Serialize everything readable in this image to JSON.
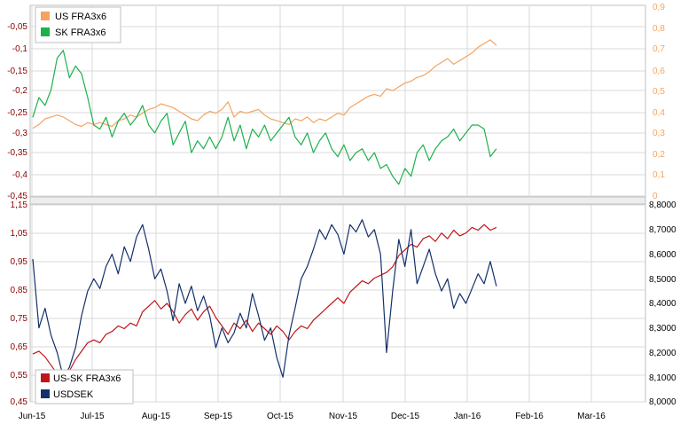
{
  "colors": {
    "us_fra": "#F4A460",
    "sk_fra": "#1DB14B",
    "spread": "#C0161B",
    "usdsek": "#13306A",
    "grid": "#D9D9D9",
    "left_axis_text": "#8B0000",
    "right_axis_text_top": "#F4A460",
    "right_axis_text_bottom": "#000000"
  },
  "chart_data": [
    {
      "type": "line",
      "panel": "top",
      "legend": {
        "placement": "top-left",
        "entries": [
          "US FRA3x6",
          "SK FRA3x6"
        ]
      },
      "x_ticks": [
        "Jun-15",
        "Jul-15",
        "Aug-15",
        "Sep-15",
        "Oct-15",
        "Nov-15",
        "Dec-15",
        "Jan-16",
        "Feb-16",
        "Mar-16"
      ],
      "y_left": {
        "ticks": [
          "-0,05",
          "-0,1",
          "-0,15",
          "-0,2",
          "-0,25",
          "-0,3",
          "-0,35",
          "-0,4",
          "-0,45"
        ],
        "range": [
          -0.45,
          -0.02
        ]
      },
      "y_right": {
        "ticks": [
          "0,9",
          "0,8",
          "0,7",
          "0,6",
          "0,5",
          "0,4",
          "0,3",
          "0,2",
          "0,1",
          "0"
        ],
        "range": [
          0,
          0.9
        ]
      },
      "grid": true,
      "series": [
        {
          "name": "US FRA3x6",
          "axis": "right",
          "x": [
            0,
            3,
            6,
            9,
            12,
            15,
            18,
            21,
            24,
            27,
            30,
            33,
            36,
            39,
            42,
            45,
            48,
            51,
            54,
            57,
            60,
            63,
            66,
            69,
            72,
            75,
            78,
            81,
            84,
            87,
            90,
            93,
            96,
            99,
            102,
            105,
            108,
            111,
            114,
            117,
            120,
            123,
            126,
            129,
            132,
            135,
            138,
            141,
            144,
            147,
            150,
            153,
            156,
            159,
            162,
            165,
            168,
            171,
            174,
            177,
            180,
            183,
            186,
            189,
            192,
            195,
            198,
            201,
            204,
            207,
            210,
            213,
            216,
            219,
            222,
            225,
            228
          ],
          "values": [
            0.36,
            0.38,
            0.41,
            0.42,
            0.43,
            0.42,
            0.4,
            0.38,
            0.37,
            0.39,
            0.38,
            0.39,
            0.38,
            0.37,
            0.4,
            0.41,
            0.43,
            0.42,
            0.44,
            0.46,
            0.47,
            0.49,
            0.48,
            0.47,
            0.45,
            0.43,
            0.41,
            0.4,
            0.43,
            0.45,
            0.44,
            0.46,
            0.5,
            0.42,
            0.45,
            0.44,
            0.45,
            0.46,
            0.43,
            0.41,
            0.4,
            0.39,
            0.38,
            0.41,
            0.4,
            0.42,
            0.39,
            0.41,
            0.4,
            0.42,
            0.44,
            0.43,
            0.47,
            0.49,
            0.51,
            0.53,
            0.54,
            0.53,
            0.57,
            0.56,
            0.58,
            0.6,
            0.61,
            0.63,
            0.64,
            0.66,
            0.69,
            0.71,
            0.73,
            0.7,
            0.72,
            0.74,
            0.76,
            0.79,
            0.81,
            0.83,
            0.8
          ]
        },
        {
          "name": "SK FRA3x6",
          "axis": "left",
          "x": [
            0,
            3,
            6,
            9,
            12,
            15,
            18,
            21,
            24,
            27,
            30,
            33,
            36,
            39,
            42,
            45,
            48,
            51,
            54,
            57,
            60,
            63,
            66,
            69,
            72,
            75,
            78,
            81,
            84,
            87,
            90,
            93,
            96,
            99,
            102,
            105,
            108,
            111,
            114,
            117,
            120,
            123,
            126,
            129,
            132,
            135,
            138,
            141,
            144,
            147,
            150,
            153,
            156,
            159,
            162,
            165,
            168,
            171,
            174,
            177,
            180,
            183,
            186,
            189,
            192,
            195,
            198,
            201,
            204,
            207,
            210,
            213,
            216,
            219,
            222,
            225,
            228
          ],
          "values": [
            -0.25,
            -0.2,
            -0.22,
            -0.18,
            -0.1,
            -0.08,
            -0.15,
            -0.12,
            -0.14,
            -0.2,
            -0.27,
            -0.28,
            -0.25,
            -0.3,
            -0.26,
            -0.24,
            -0.27,
            -0.25,
            -0.22,
            -0.27,
            -0.29,
            -0.26,
            -0.24,
            -0.32,
            -0.29,
            -0.26,
            -0.34,
            -0.31,
            -0.33,
            -0.3,
            -0.33,
            -0.3,
            -0.25,
            -0.31,
            -0.27,
            -0.33,
            -0.28,
            -0.3,
            -0.27,
            -0.31,
            -0.29,
            -0.27,
            -0.25,
            -0.3,
            -0.32,
            -0.29,
            -0.34,
            -0.31,
            -0.29,
            -0.33,
            -0.35,
            -0.32,
            -0.36,
            -0.34,
            -0.33,
            -0.36,
            -0.34,
            -0.38,
            -0.37,
            -0.4,
            -0.42,
            -0.38,
            -0.4,
            -0.34,
            -0.32,
            -0.36,
            -0.33,
            -0.31,
            -0.3,
            -0.28,
            -0.31,
            -0.29,
            -0.27,
            -0.27,
            -0.28,
            -0.35,
            -0.33
          ]
        }
      ]
    },
    {
      "type": "line",
      "panel": "bottom",
      "legend": {
        "placement": "bottom-left",
        "entries": [
          "US-SK FRA3x6",
          "USDSEK"
        ]
      },
      "x_ticks": [
        "Jun-15",
        "Jul-15",
        "Aug-15",
        "Sep-15",
        "Oct-15",
        "Nov-15",
        "Dec-15",
        "Jan-16",
        "Feb-16",
        "Mar-16"
      ],
      "y_left": {
        "ticks": [
          "1,15",
          "1,05",
          "0,95",
          "0,85",
          "0,75",
          "0,65",
          "0,55",
          "0,45"
        ],
        "range": [
          0.45,
          1.15
        ]
      },
      "y_right": {
        "ticks": [
          "8,8000",
          "8,7000",
          "8,6000",
          "8,5000",
          "8,4000",
          "8,3000",
          "8,2000",
          "8,1000",
          "8,0000"
        ],
        "range": [
          8.0,
          8.8
        ]
      },
      "grid": true,
      "series": [
        {
          "name": "US-SK FRA3x6",
          "axis": "left",
          "x": [
            0,
            3,
            6,
            9,
            12,
            15,
            18,
            21,
            24,
            27,
            30,
            33,
            36,
            39,
            42,
            45,
            48,
            51,
            54,
            57,
            60,
            63,
            66,
            69,
            72,
            75,
            78,
            81,
            84,
            87,
            90,
            93,
            96,
            99,
            102,
            105,
            108,
            111,
            114,
            117,
            120,
            123,
            126,
            129,
            132,
            135,
            138,
            141,
            144,
            147,
            150,
            153,
            156,
            159,
            162,
            165,
            168,
            171,
            174,
            177,
            180,
            183,
            186,
            189,
            192,
            195,
            198,
            201,
            204,
            207,
            210,
            213,
            216,
            219,
            222,
            225,
            228
          ],
          "values": [
            0.62,
            0.63,
            0.61,
            0.58,
            0.55,
            0.52,
            0.56,
            0.6,
            0.63,
            0.66,
            0.67,
            0.66,
            0.69,
            0.7,
            0.72,
            0.71,
            0.73,
            0.72,
            0.77,
            0.79,
            0.81,
            0.78,
            0.8,
            0.77,
            0.73,
            0.76,
            0.78,
            0.74,
            0.77,
            0.79,
            0.75,
            0.72,
            0.69,
            0.73,
            0.71,
            0.74,
            0.7,
            0.73,
            0.71,
            0.69,
            0.72,
            0.7,
            0.67,
            0.7,
            0.72,
            0.71,
            0.74,
            0.76,
            0.78,
            0.8,
            0.82,
            0.8,
            0.84,
            0.86,
            0.88,
            0.87,
            0.89,
            0.9,
            0.91,
            0.93,
            0.97,
            0.99,
            1.01,
            1.0,
            1.03,
            1.04,
            1.02,
            1.05,
            1.03,
            1.06,
            1.04,
            1.05,
            1.07,
            1.06,
            1.08,
            1.06,
            1.07
          ]
        },
        {
          "name": "USDSEK",
          "axis": "right",
          "x": [
            0,
            3,
            6,
            9,
            12,
            15,
            18,
            21,
            24,
            27,
            30,
            33,
            36,
            39,
            42,
            45,
            48,
            51,
            54,
            57,
            60,
            63,
            66,
            69,
            72,
            75,
            78,
            81,
            84,
            87,
            90,
            93,
            96,
            99,
            102,
            105,
            108,
            111,
            114,
            117,
            120,
            123,
            126,
            129,
            132,
            135,
            138,
            141,
            144,
            147,
            150,
            153,
            156,
            159,
            162,
            165,
            168,
            171,
            174,
            177,
            180,
            183,
            186,
            189,
            192,
            195,
            198,
            201,
            204,
            207,
            210,
            213,
            216,
            219,
            222,
            225,
            228
          ],
          "values": [
            8.58,
            8.3,
            8.38,
            8.27,
            8.2,
            8.1,
            8.14,
            8.22,
            8.35,
            8.45,
            8.5,
            8.46,
            8.55,
            8.6,
            8.52,
            8.63,
            8.57,
            8.67,
            8.72,
            8.62,
            8.5,
            8.54,
            8.45,
            8.33,
            8.48,
            8.4,
            8.47,
            8.37,
            8.43,
            8.35,
            8.22,
            8.3,
            8.24,
            8.28,
            8.36,
            8.3,
            8.44,
            8.35,
            8.25,
            8.3,
            8.18,
            8.1,
            8.27,
            8.38,
            8.5,
            8.55,
            8.62,
            8.7,
            8.66,
            8.72,
            8.68,
            8.6,
            8.72,
            8.69,
            8.74,
            8.67,
            8.7,
            8.6,
            8.2,
            8.45,
            8.66,
            8.55,
            8.7,
            8.48,
            8.55,
            8.62,
            8.52,
            8.45,
            8.5,
            8.38,
            8.44,
            8.4,
            8.46,
            8.52,
            8.48,
            8.57,
            8.47
          ]
        }
      ]
    }
  ]
}
